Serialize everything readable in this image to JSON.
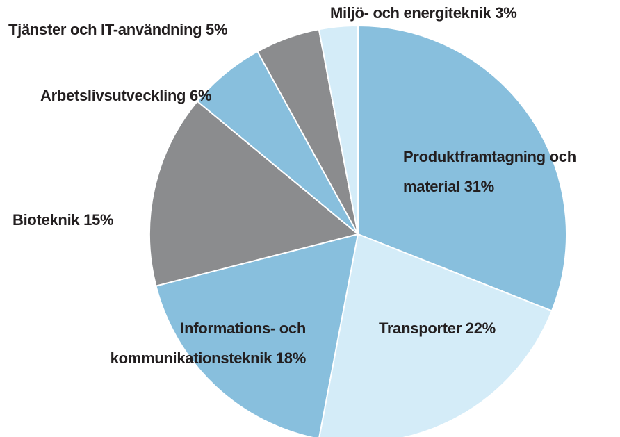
{
  "chart_data": {
    "type": "pie",
    "categories": [
      "Produktframtagning och material",
      "Transporter",
      "Informations- och kommunikationsteknik",
      "Bioteknik",
      "Arbetslivsutveckling",
      "Tjänster och IT-användning",
      "Miljö- och energiteknik"
    ],
    "values": [
      31,
      22,
      18,
      15,
      6,
      5,
      3
    ],
    "value_labels": [
      "31%",
      "22%",
      "18%",
      "15%",
      "6%",
      "5%",
      "3%"
    ],
    "colors": [
      "#88bfdd",
      "#d4ecf8",
      "#88bfdd",
      "#8b8c8e",
      "#88bfdd",
      "#8b8c8e",
      "#d4ecf8"
    ]
  }
}
